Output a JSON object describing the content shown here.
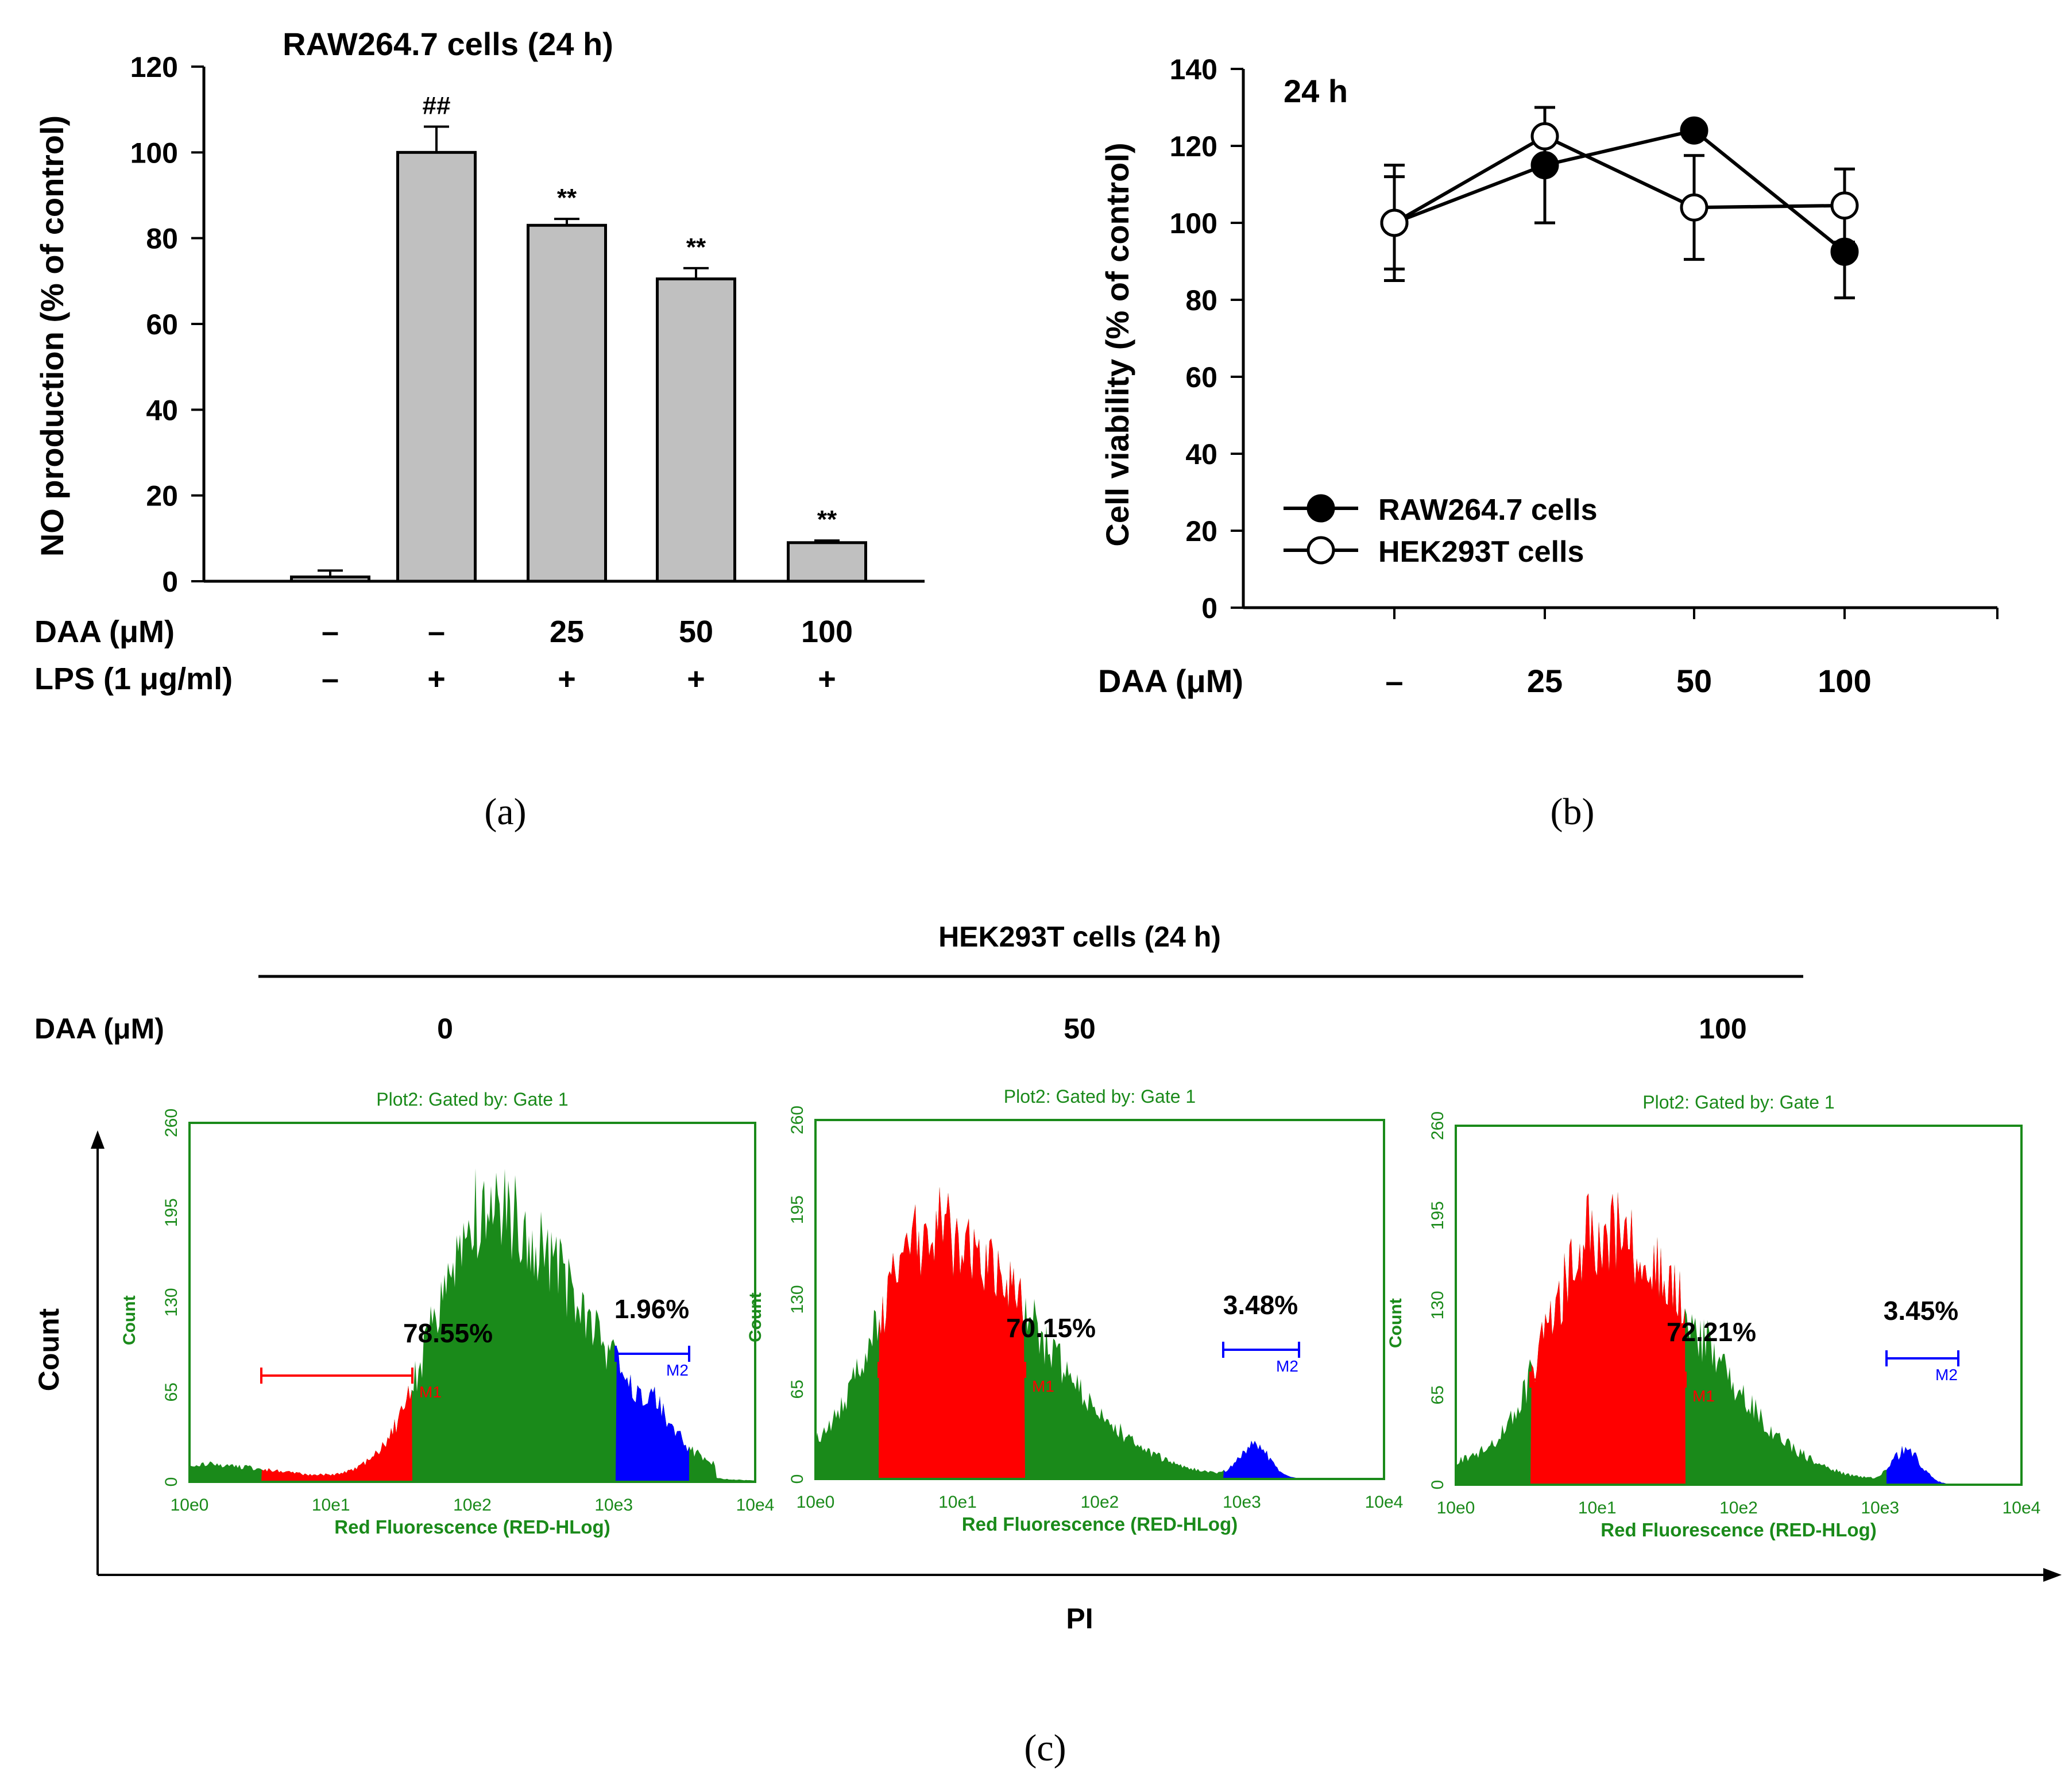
{
  "colors": {
    "bar_fill": "#c0c0c0",
    "axis": "#000000",
    "flow_green": "#1a8a1a",
    "flow_red": "#ff0000",
    "flow_blue": "#0000ff",
    "flow_text": "#1a8a1a"
  },
  "chart_data": [
    {
      "panel": "(a)",
      "type": "bar",
      "title": "RAW264.7 cells (24 h)",
      "ylabel": "NO production (% of control)",
      "ylim": [
        0,
        120
      ],
      "yticks": [
        "0",
        "20",
        "40",
        "60",
        "80",
        "100",
        "120"
      ],
      "row_labels": [
        "DAA (μM)",
        "LPS (1 μg/ml)"
      ],
      "categories_daa": [
        "–",
        "–",
        "25",
        "50",
        "100"
      ],
      "categories_lps": [
        "–",
        "+",
        "+",
        "+",
        "+"
      ],
      "values": [
        1,
        100,
        83,
        70.5,
        9
      ],
      "errors": [
        1.5,
        6,
        1.5,
        2.5,
        0.5
      ],
      "significance": [
        "",
        "##",
        "**",
        "**",
        "**"
      ]
    },
    {
      "panel": "(b)",
      "type": "line",
      "title": "24 h",
      "ylabel": "Cell viability (% of control)",
      "ylim": [
        0,
        140
      ],
      "yticks": [
        "0",
        "20",
        "40",
        "60",
        "80",
        "100",
        "120",
        "140"
      ],
      "xlabel": "DAA (μM)",
      "categories": [
        "–",
        "25",
        "50",
        "100"
      ],
      "series": [
        {
          "name": "RAW264.7 cells",
          "marker": "filled",
          "values": [
            100,
            115,
            124,
            92.5
          ],
          "errors": [
            12,
            15,
            2,
            12
          ]
        },
        {
          "name": "HEK293T cells",
          "marker": "open",
          "values": [
            100,
            122.5,
            104,
            104.5
          ],
          "errors": [
            15,
            7.5,
            13.5,
            9.5
          ]
        }
      ]
    },
    {
      "panel": "(c)",
      "type": "histogram",
      "title": "HEK293T cells (24 h)",
      "row_label": "DAA (μM)",
      "xlabel": "PI",
      "ylabel": "Count",
      "plots": [
        {
          "dose": "0",
          "plot_title": "Plot2:  Gated by: Gate 1",
          "m1_percent": "78.55%",
          "m2_percent": "1.96%",
          "m1_label": "M1",
          "m2_label": "M2"
        },
        {
          "dose": "50",
          "plot_title": "Plot2:  Gated by: Gate 1",
          "m1_percent": "70.15%",
          "m2_percent": "3.48%",
          "m1_label": "M1",
          "m2_label": "M2"
        },
        {
          "dose": "100",
          "plot_title": "Plot2:  Gated by: Gate 1",
          "m1_percent": "72.21%",
          "m2_percent": "3.45%",
          "m1_label": "M1",
          "m2_label": "M2"
        }
      ],
      "yticks": [
        "0",
        "65",
        "130",
        "195",
        "260"
      ],
      "xticks": [
        "10e0",
        "10e1",
        "10e2",
        "10e3",
        "10e4"
      ],
      "inner_xlabel": "Red Fluorescence (RED-HLog)",
      "inner_ylabel": "Count"
    }
  ]
}
